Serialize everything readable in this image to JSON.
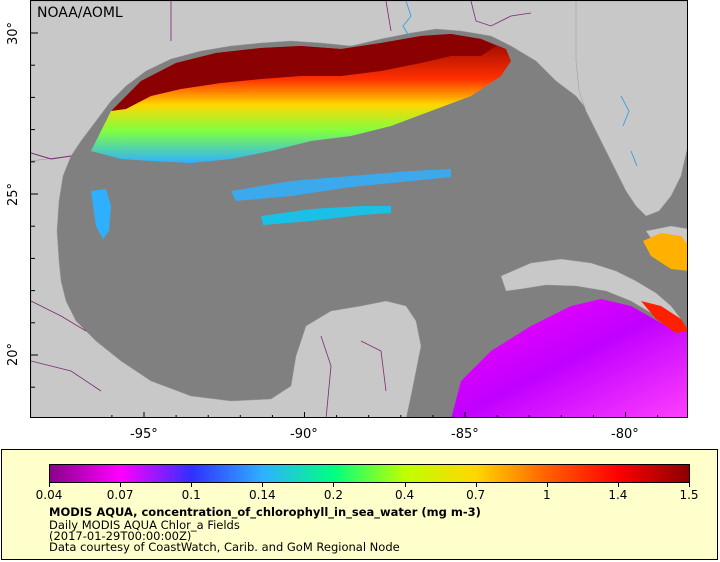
{
  "map": {
    "credit": "NOAA/AOML",
    "lat_labels": [
      "30°",
      "25°",
      "20°"
    ],
    "lon_labels": [
      "-95°",
      "-90°",
      "-85°",
      "-80°"
    ],
    "colors": {
      "ocean_no_data": "#808080",
      "land": "#c8c8c8",
      "border": "#7a2b73",
      "river": "#3fa3e0"
    }
  },
  "legend": {
    "tick_labels": [
      "0.04",
      "0.07",
      "0.1",
      "0.14",
      "0.2",
      "0.4",
      "0.7",
      "1",
      "1.4",
      "1.5"
    ],
    "color_stops": [
      "#8b008b",
      "#ff00ff",
      "#3030ff",
      "#2fb0ff",
      "#00ff80",
      "#bfff00",
      "#ffd700",
      "#ff6000",
      "#ff0000",
      "#8b0000"
    ],
    "title": "MODIS AQUA, concentration_of_chlorophyll_in_sea_water (mg m-3)",
    "line2": "Daily MODIS AQUA Chlor_a Fields",
    "line3": "(2017-01-29T00:00:00Z)",
    "line4": "Data courtesy of CoastWatch, Carib. and GoM Regional Node"
  }
}
